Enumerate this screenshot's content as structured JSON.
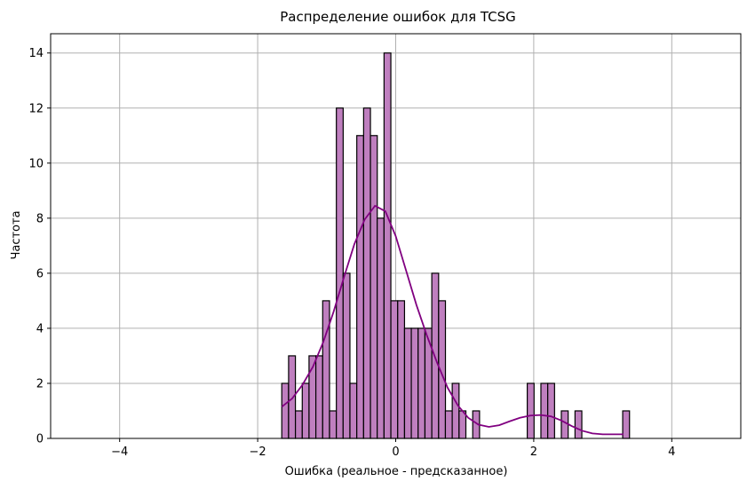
{
  "chart_data": {
    "type": "bar",
    "title": "Распределение ошибок для TCSG",
    "xlabel": "Ошибка (реальное - предсказанное)",
    "ylabel": "Частота",
    "xlim": [
      -5.0,
      5.0
    ],
    "ylim": [
      0,
      14.7
    ],
    "xticks": [
      -4,
      -2,
      0,
      2,
      4
    ],
    "yticks": [
      0,
      2,
      4,
      6,
      8,
      10,
      12,
      14
    ],
    "grid": true,
    "bin_width": 0.0988,
    "bins": [
      {
        "x0": -1.651,
        "count": 2
      },
      {
        "x0": -1.552,
        "count": 3
      },
      {
        "x0": -1.453,
        "count": 1
      },
      {
        "x0": -1.354,
        "count": 2
      },
      {
        "x0": -1.256,
        "count": 3
      },
      {
        "x0": -1.157,
        "count": 3
      },
      {
        "x0": -1.058,
        "count": 5
      },
      {
        "x0": -0.959,
        "count": 1
      },
      {
        "x0": -0.86,
        "count": 12
      },
      {
        "x0": -0.762,
        "count": 6
      },
      {
        "x0": -0.663,
        "count": 2
      },
      {
        "x0": -0.564,
        "count": 11
      },
      {
        "x0": -0.465,
        "count": 12
      },
      {
        "x0": -0.366,
        "count": 11
      },
      {
        "x0": -0.268,
        "count": 8
      },
      {
        "x0": -0.169,
        "count": 14
      },
      {
        "x0": -0.07,
        "count": 5
      },
      {
        "x0": 0.029,
        "count": 5
      },
      {
        "x0": 0.128,
        "count": 4
      },
      {
        "x0": 0.226,
        "count": 4
      },
      {
        "x0": 0.325,
        "count": 4
      },
      {
        "x0": 0.424,
        "count": 4
      },
      {
        "x0": 0.523,
        "count": 6
      },
      {
        "x0": 0.622,
        "count": 5
      },
      {
        "x0": 0.72,
        "count": 1
      },
      {
        "x0": 0.819,
        "count": 2
      },
      {
        "x0": 0.918,
        "count": 1
      },
      {
        "x0": 1.116,
        "count": 1
      },
      {
        "x0": 1.906,
        "count": 2
      },
      {
        "x0": 2.104,
        "count": 2
      },
      {
        "x0": 2.203,
        "count": 2
      },
      {
        "x0": 2.4,
        "count": 1
      },
      {
        "x0": 2.598,
        "count": 1
      },
      {
        "x0": 3.289,
        "count": 1
      }
    ],
    "kde": {
      "name": "KDE",
      "x": [
        -1.65,
        -1.5,
        -1.35,
        -1.2,
        -1.05,
        -0.9,
        -0.75,
        -0.6,
        -0.45,
        -0.3,
        -0.15,
        0.0,
        0.15,
        0.3,
        0.45,
        0.6,
        0.75,
        0.9,
        1.05,
        1.2,
        1.35,
        1.5,
        1.65,
        1.8,
        1.95,
        2.1,
        2.25,
        2.4,
        2.55,
        2.7,
        2.85,
        3.0,
        3.15,
        3.3
      ],
      "y": [
        1.15,
        1.45,
        1.95,
        2.6,
        3.5,
        4.6,
        5.85,
        7.05,
        7.95,
        8.45,
        8.25,
        7.35,
        6.1,
        4.85,
        3.75,
        2.75,
        1.85,
        1.2,
        0.75,
        0.5,
        0.42,
        0.48,
        0.62,
        0.75,
        0.83,
        0.85,
        0.8,
        0.65,
        0.45,
        0.28,
        0.18,
        0.15,
        0.15,
        0.15
      ]
    },
    "colors": {
      "bar_fill": "#bf7fbf",
      "bar_edge": "#000000",
      "kde_line": "#800080",
      "grid": "#b0b0b0"
    }
  }
}
